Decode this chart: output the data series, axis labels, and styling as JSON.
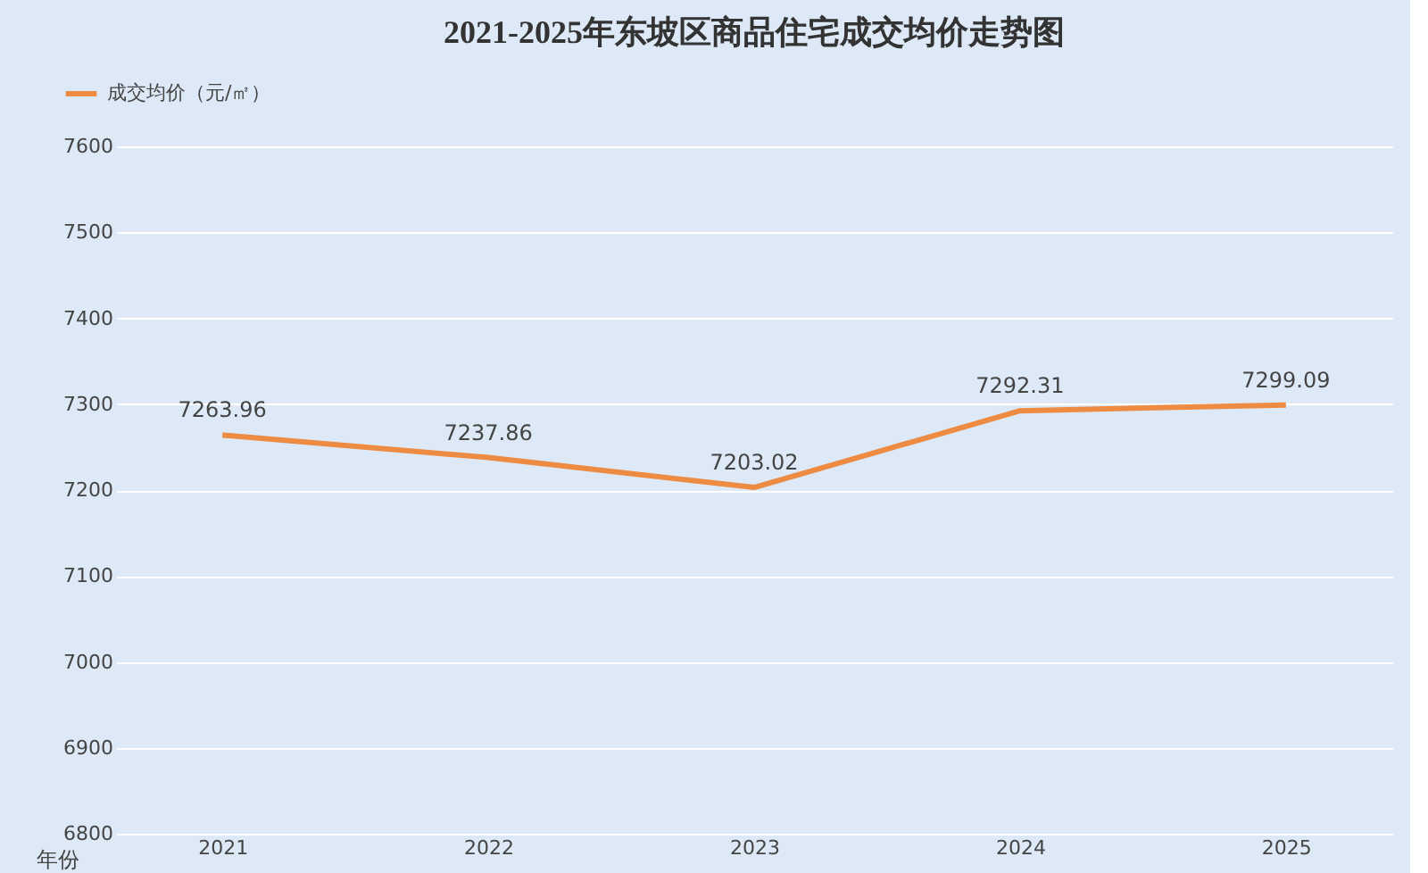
{
  "chart_data": {
    "type": "line",
    "title": "2021-2025年东坡区商品住宅成交均价走势图",
    "xlabel": "年份",
    "categories": [
      "2021",
      "2022",
      "2023",
      "2024",
      "2025"
    ],
    "series": [
      {
        "name": "成交均价（元/㎡）",
        "color": "#ed8b43",
        "values": [
          7263.96,
          7237.86,
          7203.02,
          7292.31,
          7299.09
        ]
      }
    ],
    "ylim": [
      6800,
      7600
    ],
    "yticks": [
      6800,
      6900,
      7000,
      7100,
      7200,
      7300,
      7400,
      7500,
      7600
    ],
    "grid": "y",
    "legend": "top left",
    "data_labels": true,
    "marker": "none",
    "line_style": "solid"
  }
}
